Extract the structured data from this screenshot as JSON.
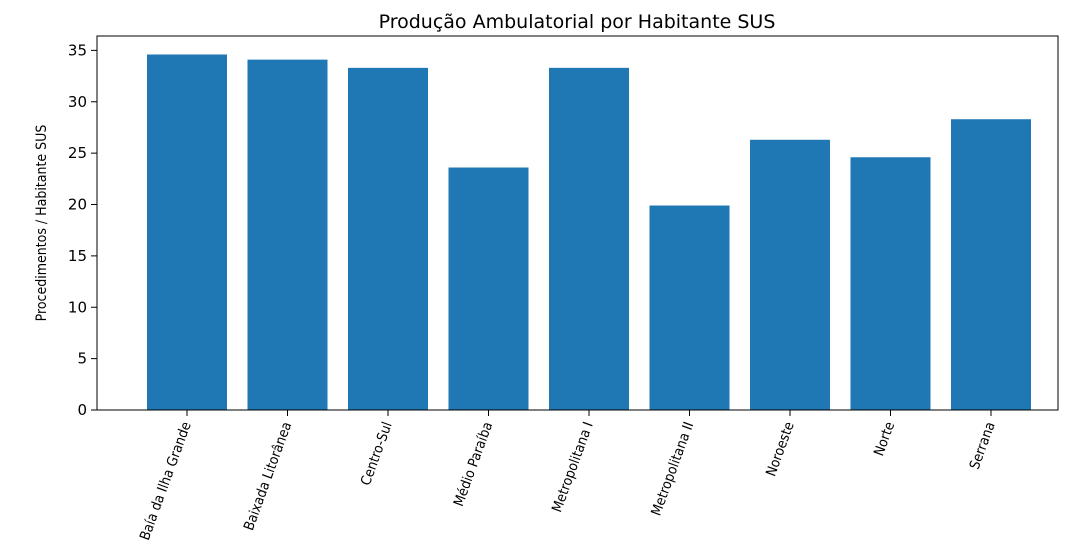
{
  "chart_data": {
    "type": "bar",
    "title": "Produção Ambulatorial por Habitante SUS",
    "ylabel": "Procedimentos / Habitante SUS",
    "categories": [
      "Baía da Ilha Grande",
      "Baixada Litorânea",
      "Centro-Sul",
      "Médio Paraíba",
      "Metropolitana I",
      "Metropolitana II",
      "Noroeste",
      "Norte",
      "Serrana"
    ],
    "values": [
      34.6,
      34.1,
      33.3,
      23.6,
      33.3,
      19.9,
      26.3,
      24.6,
      28.3
    ],
    "color": "#1f77b4",
    "ylim": [
      0,
      36.4
    ],
    "yticks": [
      0,
      5,
      10,
      15,
      20,
      25,
      30,
      35
    ],
    "grid": false
  }
}
